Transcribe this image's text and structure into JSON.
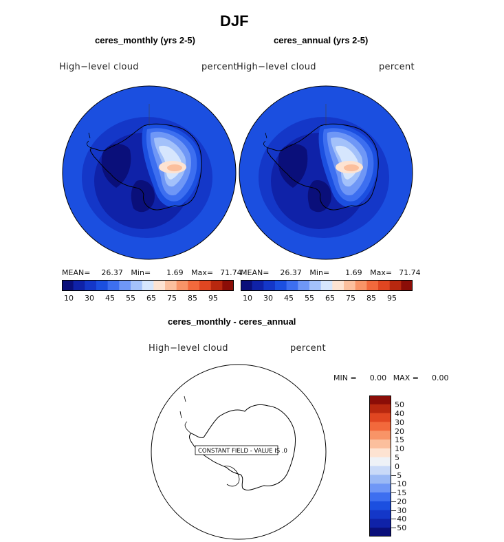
{
  "page_title": "DJF",
  "panels": [
    {
      "subtitle": "ceres_monthly (yrs 2-5)",
      "field_label": "High−level  cloud",
      "units_label": "percent",
      "stats": {
        "mean_label": "MEAN=",
        "mean": "26.37",
        "min_label": "Min=",
        "min": "1.69",
        "max_label": "Max=",
        "max": "71.74"
      },
      "colorbar_ticks": [
        "10",
        "30",
        "45",
        "55",
        "65",
        "75",
        "85",
        "95"
      ]
    },
    {
      "subtitle": "ceres_annual (yrs 2-5)",
      "field_label": "High−level  cloud",
      "units_label": "percent",
      "stats": {
        "mean_label": "MEAN=",
        "mean": "26.37",
        "min_label": "Min=",
        "min": "1.69",
        "max_label": "Max=",
        "max": "71.74"
      },
      "colorbar_ticks": [
        "10",
        "30",
        "45",
        "55",
        "65",
        "75",
        "85",
        "95"
      ]
    }
  ],
  "difference_panel": {
    "subtitle": "ceres_monthly - ceres_annual",
    "field_label": "High−level  cloud",
    "units_label": "percent",
    "constant_field_note": "CONSTANT FIELD - VALUE IS .0",
    "stats": {
      "min_label": "MIN =",
      "min": "0.00",
      "max_label": "MAX =",
      "max": "0.00"
    },
    "colorbar_levels": [
      "50",
      "40",
      "30",
      "20",
      "15",
      "10",
      "5",
      "0",
      "−5",
      "−10",
      "−15",
      "−20",
      "−30",
      "−40",
      "−50"
    ]
  },
  "colors": {
    "top_colorbar": [
      "#0a0f7a",
      "#0f22a8",
      "#1437c8",
      "#1b4fe0",
      "#3d6ff0",
      "#6f97f6",
      "#a3c1fa",
      "#d6e6fd",
      "#fde3d2",
      "#fbbf9d",
      "#f89467",
      "#f2693c",
      "#e04621",
      "#b8280f",
      "#8b0d07"
    ],
    "diff_colorbar": [
      "#8b0d07",
      "#b8280f",
      "#e04621",
      "#f2693c",
      "#f89467",
      "#fbbf9d",
      "#fde3d2",
      "#eef2f7",
      "#c9daf8",
      "#9ab9f5",
      "#6f97f6",
      "#3d6ff0",
      "#1b4fe0",
      "#1437c8",
      "#0f22a8",
      "#0a0f7a"
    ]
  }
}
